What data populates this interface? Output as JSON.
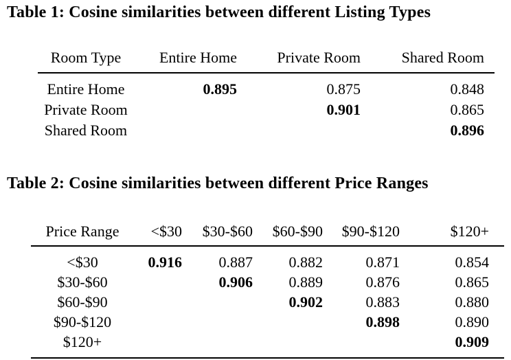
{
  "page": {
    "background_color": "#ffffff",
    "text_color": "#000000"
  },
  "table1": {
    "title": "Table 1: Cosine similarities between different Listing Types",
    "columns": [
      "Room Type",
      "Entire Home",
      "Private Room",
      "Shared Room"
    ],
    "rows": [
      {
        "label": "Entire Home",
        "values": [
          "0.895",
          "0.875",
          "0.848"
        ],
        "bold_index": 0
      },
      {
        "label": "Private Room",
        "values": [
          "",
          "0.901",
          "0.865"
        ],
        "bold_index": 1
      },
      {
        "label": "Shared Room",
        "values": [
          "",
          "",
          "0.896"
        ],
        "bold_index": 2
      }
    ]
  },
  "table2": {
    "title": "Table 2: Cosine similarities between different Price Ranges",
    "columns": [
      "Price Range",
      "<$30",
      "$30-$60",
      "$60-$90",
      "$90-$120",
      "$120+"
    ],
    "rows": [
      {
        "label": "<$30",
        "values": [
          "0.916",
          "0.887",
          "0.882",
          "0.871",
          "0.854"
        ],
        "bold_index": 0
      },
      {
        "label": "$30-$60",
        "values": [
          "",
          "0.906",
          "0.889",
          "0.876",
          "0.865"
        ],
        "bold_index": 1
      },
      {
        "label": "$60-$90",
        "values": [
          "",
          "",
          "0.902",
          "0.883",
          "0.880"
        ],
        "bold_index": 2
      },
      {
        "label": "$90-$120",
        "values": [
          "",
          "",
          "",
          "0.898",
          "0.890"
        ],
        "bold_index": 3
      },
      {
        "label": "$120+",
        "values": [
          "",
          "",
          "",
          "",
          "0.909"
        ],
        "bold_index": 4
      }
    ]
  }
}
